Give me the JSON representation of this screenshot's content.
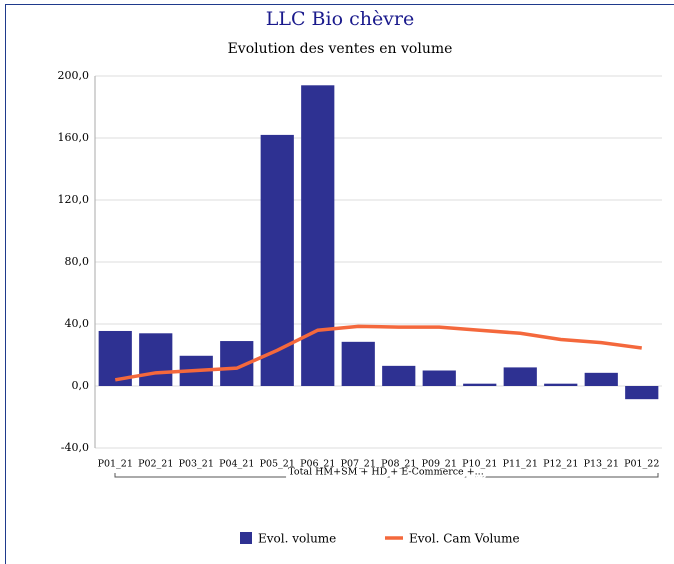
{
  "chart_data": {
    "type": "bar_line",
    "title": "LLC Bio chèvre",
    "subtitle": "Evolution des ventes en volume",
    "group_label": "Total HM+SM + HD + E-Commerce +...",
    "categories": [
      "P01_21",
      "P02_21",
      "P03_21",
      "P04_21",
      "P05_21",
      "P06_21",
      "P07_21",
      "P08_21",
      "P09_21",
      "P10_21",
      "P11_21",
      "P12_21",
      "P13_21",
      "P01_22"
    ],
    "series": [
      {
        "name": "Evol. volume",
        "kind": "bar",
        "color": "#2e3192",
        "values": [
          35.5,
          34,
          19.5,
          29,
          162,
          194,
          28.5,
          13,
          10,
          1.5,
          12,
          1.5,
          8.5,
          -8.5
        ]
      },
      {
        "name": "Evol. Cam Volume",
        "kind": "line",
        "color": "#f4683c",
        "values": [
          4,
          8.5,
          10,
          11.5,
          23,
          36,
          38.5,
          38,
          38,
          36,
          34,
          30,
          28,
          24.5
        ]
      }
    ],
    "ylim": [
      -40,
      200
    ],
    "yticks": [
      {
        "value": -40,
        "label": "-40,0"
      },
      {
        "value": 0,
        "label": "0,0"
      },
      {
        "value": 40,
        "label": "40,0"
      },
      {
        "value": 80,
        "label": "80,0"
      },
      {
        "value": 120,
        "label": "120,0"
      },
      {
        "value": 160,
        "label": "160,0"
      },
      {
        "value": 200,
        "label": "200,0"
      }
    ],
    "grid": true,
    "legend": "bottom"
  }
}
